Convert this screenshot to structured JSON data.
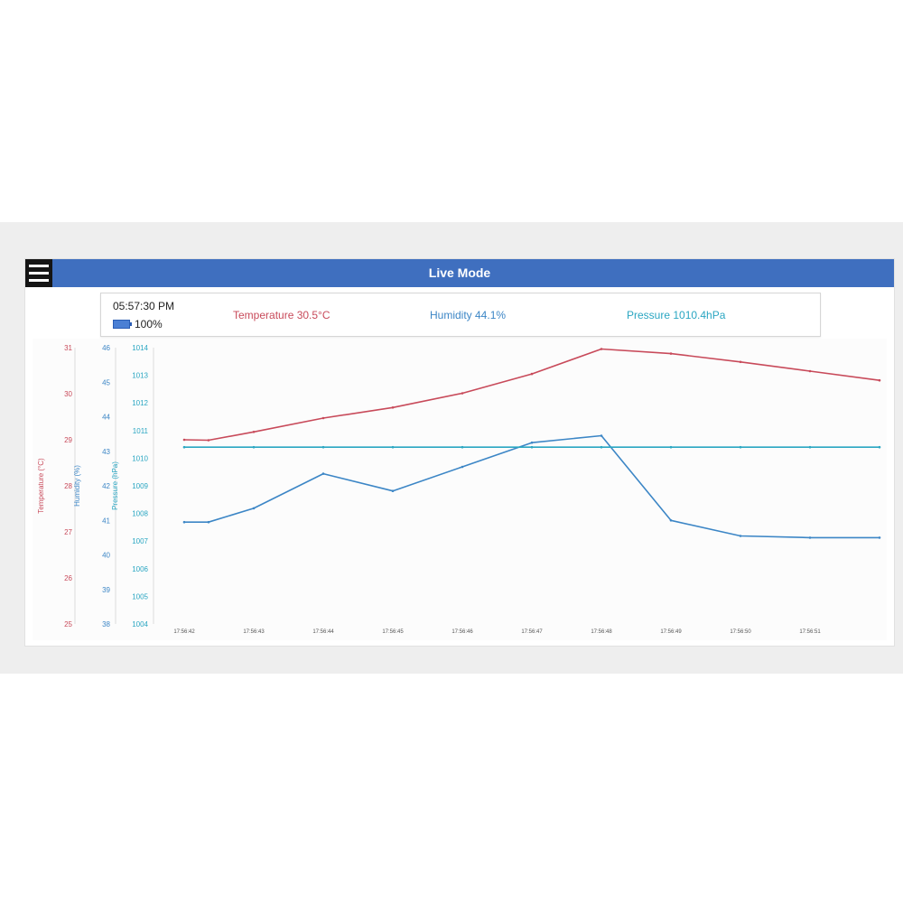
{
  "app": {
    "title": "Live Mode"
  },
  "status": {
    "time": "05:57:30 PM",
    "battery": "100%",
    "temperature": "Temperature 30.5°C",
    "humidity": "Humidity 44.1%",
    "pressure": "Pressure 1010.4hPa"
  },
  "colors": {
    "temperature": "#c84a5a",
    "humidity": "#3c86c6",
    "pressure": "#2aa6c2",
    "titlebar": "#3f6fbf"
  },
  "icons": {
    "menu": "hamburger-icon",
    "battery": "battery-icon"
  },
  "chart_data": {
    "type": "line",
    "axes": [
      {
        "name": "Temperature (°C)",
        "min": 25,
        "max": 31,
        "ticks": [
          "31",
          "30",
          "29",
          "28",
          "27",
          "26",
          "25"
        ]
      },
      {
        "name": "Humidity (%)",
        "min": 38,
        "max": 46,
        "ticks": [
          "46",
          "45",
          "44",
          "43",
          "42",
          "41",
          "40",
          "39",
          "38"
        ]
      },
      {
        "name": "Pressure (hPa)",
        "min": 1004,
        "max": 1014,
        "ticks": [
          "1014",
          "1013",
          "1012",
          "1011",
          "1010",
          "1009",
          "1008",
          "1007",
          "1006",
          "1005",
          "1004"
        ]
      }
    ],
    "x": [
      "17:56:42",
      "17:56:43",
      "17:56:44",
      "17:56:45",
      "17:56:46",
      "17:56:47",
      "17:56:48",
      "17:56:49",
      "17:56:50",
      "17:56:51"
    ],
    "series": [
      {
        "name": "Temperature",
        "axis": 0,
        "x": [
          0.0,
          0.35,
          1.0,
          2.0,
          3.0,
          4.0,
          5.0,
          6.0,
          7.0,
          8.0,
          9.0,
          10.0
        ],
        "values": [
          29.0,
          28.99,
          29.17,
          29.47,
          29.7,
          30.01,
          30.43,
          30.97,
          30.87,
          30.69,
          30.49,
          30.29
        ]
      },
      {
        "name": "Humidity",
        "axis": 1,
        "x": [
          0.0,
          0.35,
          1.0,
          2.0,
          3.0,
          4.0,
          5.0,
          6.0,
          7.0,
          8.0,
          9.0,
          10.0
        ],
        "values": [
          40.95,
          40.95,
          41.35,
          42.35,
          41.85,
          42.55,
          43.25,
          43.45,
          41.0,
          40.55,
          40.5,
          40.5
        ]
      },
      {
        "name": "Pressure",
        "axis": 2,
        "x": [
          0.0,
          1.0,
          2.0,
          3.0,
          4.0,
          5.0,
          6.0,
          7.0,
          8.0,
          9.0,
          10.0
        ],
        "values": [
          1010.4,
          1010.4,
          1010.4,
          1010.4,
          1010.4,
          1010.4,
          1010.4,
          1010.4,
          1010.4,
          1010.4,
          1010.4
        ]
      }
    ]
  }
}
